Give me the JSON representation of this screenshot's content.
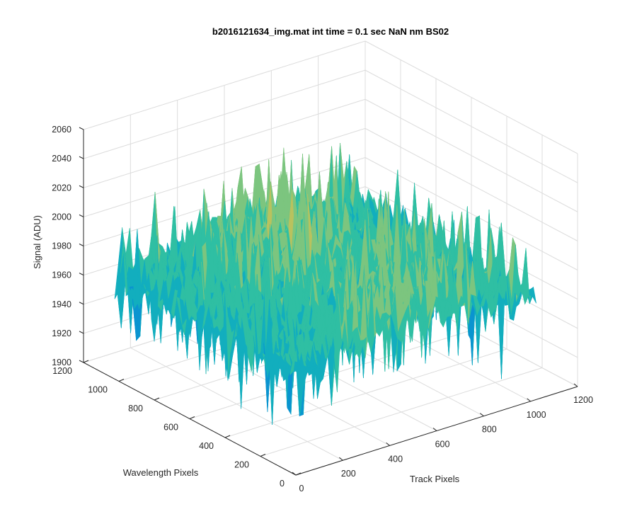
{
  "chart_data": {
    "type": "surface",
    "title": "b2016121634_img.mat int time = 0.1 sec  NaN nm BS02",
    "xlabel": "Track Pixels",
    "ylabel": "Wavelength Pixels",
    "zlabel": "Signal (ADU)",
    "xlim": [
      0,
      1200
    ],
    "ylim": [
      0,
      1200
    ],
    "zlim": [
      1900,
      2060
    ],
    "xticks": [
      "0",
      "200",
      "400",
      "600",
      "800",
      "1000",
      "1200"
    ],
    "yticks": [
      "0",
      "200",
      "400",
      "600",
      "800",
      "1000",
      "1200"
    ],
    "zticks": [
      "1900",
      "1920",
      "1940",
      "1960",
      "1980",
      "2000",
      "2020",
      "2040",
      "2060"
    ],
    "grid": true,
    "colormap": [
      "#0072bd",
      "#0a94d0",
      "#12aebe",
      "#2fbfa3",
      "#7cc57f",
      "#b9c25e",
      "#d8bd45"
    ],
    "data_extent": {
      "x": [
        0,
        1024
      ],
      "y": [
        0,
        1024
      ]
    },
    "surface_summary": {
      "mean_signal": 1975,
      "noise_range": [
        1910,
        2045
      ],
      "note": ""
    }
  }
}
